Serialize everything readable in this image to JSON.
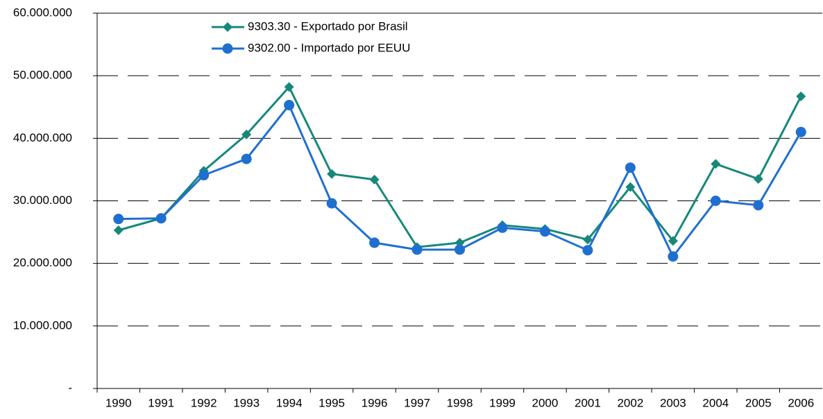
{
  "chart_data": {
    "type": "line",
    "categories": [
      "1990",
      "1991",
      "1992",
      "1993",
      "1994",
      "1995",
      "1996",
      "1997",
      "1998",
      "1999",
      "2000",
      "2001",
      "2002",
      "2003",
      "2004",
      "2005",
      "2006"
    ],
    "series": [
      {
        "name": "9303.30 - Exportado por Brasil",
        "color": "#16887a",
        "marker": "diamond",
        "values": [
          25300000,
          27200000,
          34800000,
          40600000,
          48200000,
          34300000,
          33400000,
          22600000,
          23300000,
          26100000,
          25500000,
          23800000,
          32200000,
          23600000,
          35900000,
          33500000,
          46700000
        ]
      },
      {
        "name": "9302.00 - Importado por EEUU",
        "color": "#1f6fd0",
        "marker": "circle",
        "values": [
          27100000,
          27200000,
          34100000,
          36700000,
          45300000,
          29600000,
          23300000,
          22200000,
          22200000,
          25700000,
          25100000,
          22100000,
          35300000,
          21100000,
          30000000,
          29300000,
          41000000
        ]
      }
    ],
    "ylim": [
      0,
      60000000
    ],
    "yticks": [
      {
        "value": 0,
        "label": "-"
      },
      {
        "value": 10000000,
        "label": "10.000.000"
      },
      {
        "value": 20000000,
        "label": "20.000.000"
      },
      {
        "value": 30000000,
        "label": "30.000.000"
      },
      {
        "value": 40000000,
        "label": "40.000.000"
      },
      {
        "value": 50000000,
        "label": "50.000.000"
      },
      {
        "value": 60000000,
        "label": "60.000.000"
      }
    ],
    "grid": true,
    "legend": "top-left"
  }
}
